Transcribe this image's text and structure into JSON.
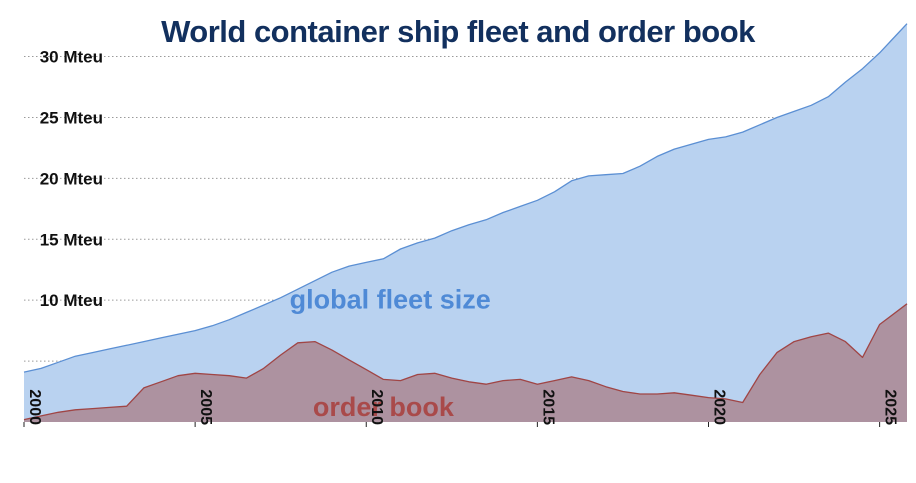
{
  "chart_data": {
    "type": "area",
    "title": "World container ship fleet and order book",
    "xlabel": "",
    "ylabel": "",
    "xlim": [
      2000,
      2025.8
    ],
    "ylim": [
      0,
      33
    ],
    "yticks": [
      {
        "value": 10,
        "label": "10 Mteu"
      },
      {
        "value": 15,
        "label": "15 Mteu"
      },
      {
        "value": 20,
        "label": "20 Mteu"
      },
      {
        "value": 25,
        "label": "25 Mteu"
      },
      {
        "value": 30,
        "label": "30 Mteu"
      }
    ],
    "xticks": [
      {
        "value": 2000,
        "label": "2000"
      },
      {
        "value": 2005,
        "label": "2005"
      },
      {
        "value": 2010,
        "label": "2010"
      },
      {
        "value": 2015,
        "label": "2015"
      },
      {
        "value": 2020,
        "label": "2020"
      },
      {
        "value": 2025,
        "label": "2025"
      }
    ],
    "grid": true,
    "series": [
      {
        "name": "global fleet size",
        "label": "global fleet size",
        "color": "#b9d2f0",
        "line_color": "#5b8fd3",
        "x": [
          2000,
          2000.5,
          2001,
          2001.5,
          2002,
          2002.5,
          2003,
          2003.5,
          2004,
          2004.5,
          2005,
          2005.5,
          2006,
          2006.5,
          2007,
          2007.5,
          2008,
          2008.5,
          2009,
          2009.5,
          2010,
          2010.5,
          2011,
          2011.5,
          2012,
          2012.5,
          2013,
          2013.5,
          2014,
          2014.5,
          2015,
          2015.5,
          2016,
          2016.5,
          2017,
          2017.5,
          2018,
          2018.5,
          2019,
          2019.5,
          2020,
          2020.5,
          2021,
          2021.5,
          2022,
          2022.5,
          2023,
          2023.5,
          2024,
          2024.5,
          2025,
          2025.8
        ],
        "values": [
          4.1,
          4.4,
          4.9,
          5.4,
          5.7,
          6.0,
          6.3,
          6.6,
          6.9,
          7.2,
          7.5,
          7.9,
          8.4,
          9.0,
          9.6,
          10.2,
          10.9,
          11.6,
          12.3,
          12.8,
          13.1,
          13.4,
          14.2,
          14.7,
          15.1,
          15.7,
          16.2,
          16.6,
          17.2,
          17.7,
          18.2,
          18.9,
          19.8,
          20.2,
          20.3,
          20.4,
          21.0,
          21.8,
          22.4,
          22.8,
          23.2,
          23.4,
          23.8,
          24.4,
          25.0,
          25.5,
          26.0,
          26.7,
          27.9,
          29.0,
          30.3,
          32.7
        ]
      },
      {
        "name": "order book",
        "label": "order book",
        "color": "#ad92a0",
        "line_color": "#a04545",
        "x": [
          2000,
          2000.5,
          2001,
          2001.5,
          2002,
          2002.5,
          2003,
          2003.5,
          2004,
          2004.5,
          2005,
          2005.5,
          2006,
          2006.5,
          2007,
          2007.5,
          2008,
          2008.5,
          2009,
          2009.5,
          2010,
          2010.5,
          2011,
          2011.5,
          2012,
          2012.5,
          2013,
          2013.5,
          2014,
          2014.5,
          2015,
          2015.5,
          2016,
          2016.5,
          2017,
          2017.5,
          2018,
          2018.5,
          2019,
          2019.5,
          2020,
          2020.5,
          2021,
          2021.5,
          2022,
          2022.5,
          2023,
          2023.5,
          2024,
          2024.5,
          2025,
          2025.8
        ],
        "values": [
          0.2,
          0.5,
          0.8,
          1.0,
          1.1,
          1.2,
          1.3,
          2.8,
          3.3,
          3.8,
          4.0,
          3.9,
          3.8,
          3.6,
          4.4,
          5.5,
          6.5,
          6.6,
          5.9,
          5.1,
          4.3,
          3.5,
          3.4,
          3.9,
          4.0,
          3.6,
          3.3,
          3.1,
          3.4,
          3.5,
          3.1,
          3.4,
          3.7,
          3.4,
          2.9,
          2.5,
          2.3,
          2.3,
          2.4,
          2.2,
          2.0,
          1.9,
          1.6,
          3.9,
          5.7,
          6.6,
          7.0,
          7.3,
          6.6,
          5.3,
          8.0,
          9.7
        ]
      }
    ]
  }
}
